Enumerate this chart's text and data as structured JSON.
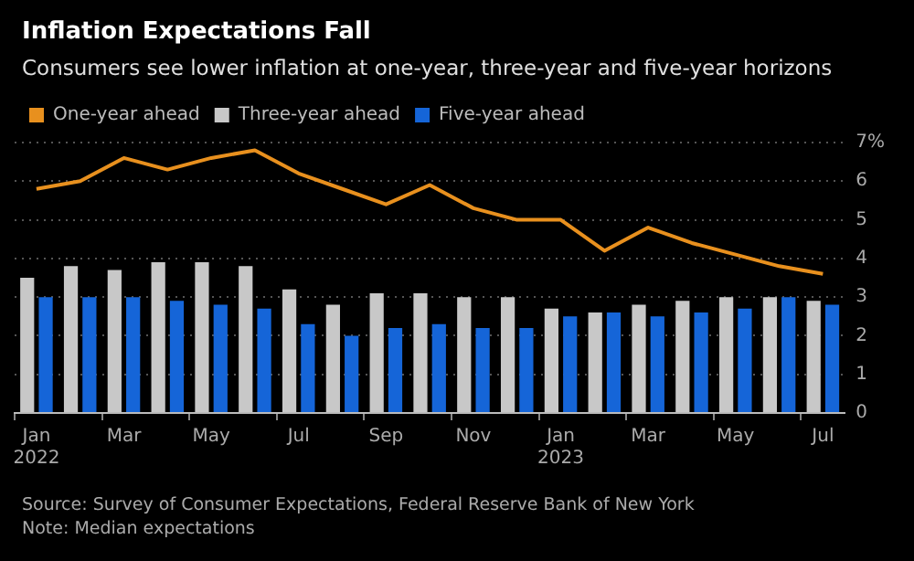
{
  "chart_data": {
    "type": "bar",
    "title": "Inflation Expectations Fall",
    "subtitle": "Consumers see lower inflation at one-year, three-year and five-year horizons",
    "categories": [
      "Jan\n2022",
      null,
      "Mar",
      null,
      "May",
      null,
      "Jul",
      null,
      "Sep",
      null,
      "Nov",
      null,
      "Jan\n2023",
      null,
      "Mar",
      null,
      "May",
      null,
      "Jul"
    ],
    "series": [
      {
        "name": "One-year ahead",
        "type": "line",
        "color": "#e8901e",
        "values": [
          5.8,
          6.0,
          6.6,
          6.3,
          6.6,
          6.8,
          6.2,
          5.8,
          5.4,
          5.9,
          5.3,
          5.0,
          5.0,
          4.2,
          4.8,
          4.4,
          4.1,
          3.8,
          3.6
        ]
      },
      {
        "name": "Three-year ahead",
        "color": "#c8c8c8",
        "values": [
          3.5,
          3.8,
          3.7,
          3.9,
          3.9,
          3.8,
          3.2,
          2.8,
          3.1,
          3.1,
          3.0,
          3.0,
          2.7,
          2.6,
          2.8,
          2.9,
          3.0,
          3.0,
          2.9
        ]
      },
      {
        "name": "Five-year ahead",
        "color": "#1565d8",
        "values": [
          3.0,
          3.0,
          3.0,
          2.9,
          2.8,
          2.7,
          2.3,
          2.0,
          2.2,
          2.3,
          2.2,
          2.2,
          2.5,
          2.6,
          2.5,
          2.6,
          2.7,
          3.0,
          2.8
        ]
      }
    ],
    "ylim": [
      0,
      7
    ],
    "yticks": [
      0,
      1,
      2,
      3,
      4,
      5,
      6,
      {
        "value": 7,
        "label": "7%"
      }
    ],
    "grid": "y",
    "legend": "top left",
    "marker": "none",
    "annotations": [
      "Source: Survey of Consumer Expectations, Federal Reserve Bank of New York",
      "Note: Median expectations"
    ]
  }
}
